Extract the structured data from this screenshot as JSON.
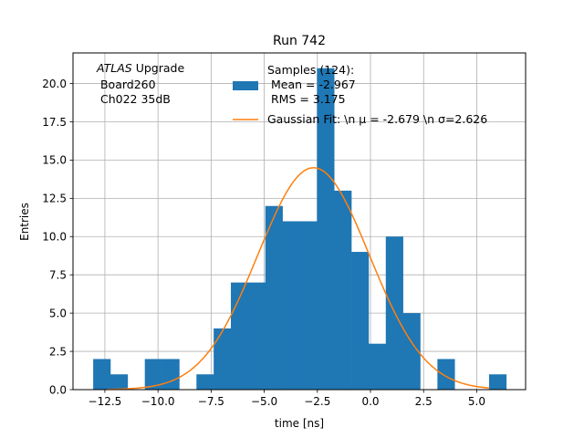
{
  "chart_data": {
    "type": "bar",
    "title": "Run 742",
    "xlabel": "time [ns]",
    "ylabel": "Entries",
    "xlim": [
      -14.0,
      7.3
    ],
    "ylim": [
      0,
      22
    ],
    "grid": true,
    "xticks": [
      -12.5,
      -10.0,
      -7.5,
      -5.0,
      -2.5,
      0.0,
      2.5,
      5.0
    ],
    "xtick_labels": [
      "−12.5",
      "−10.0",
      "−7.5",
      "−5.0",
      "−2.5",
      "0.0",
      "2.5",
      "5.0"
    ],
    "yticks": [
      0.0,
      2.5,
      5.0,
      7.5,
      10.0,
      12.5,
      15.0,
      17.5,
      20.0
    ],
    "ytick_labels": [
      "0.0",
      "2.5",
      "5.0",
      "7.5",
      "10.0",
      "12.5",
      "15.0",
      "17.5",
      "20.0"
    ],
    "histogram": {
      "bin_edges": [
        -13.05,
        -12.24,
        -11.43,
        -10.62,
        -9.81,
        -9.0,
        -8.19,
        -7.38,
        -6.57,
        -5.76,
        -4.95,
        -4.14,
        -3.33,
        -2.52,
        -1.71,
        -0.9,
        -0.09,
        0.72,
        1.53,
        2.34,
        3.15,
        3.96,
        4.77,
        5.58,
        6.39
      ],
      "counts": [
        2,
        1,
        0,
        2,
        2,
        0,
        1,
        4,
        7,
        7,
        12,
        11,
        11,
        21,
        13,
        9,
        3,
        10,
        5,
        0,
        2,
        0,
        0,
        1
      ],
      "color": "#1f77b4"
    },
    "gaussian_fit": {
      "mu": -2.679,
      "sigma": 2.626,
      "amplitude": 14.5,
      "x_range": [
        -12.4,
        5.6
      ],
      "color": "#ff7f0e"
    },
    "legend": {
      "placement": "top-center",
      "entries": [
        {
          "kind": "patch",
          "lines": [
            "Samples (124):",
            " Mean = -2.967",
            " RMS = 3.175"
          ]
        },
        {
          "kind": "line",
          "label": "Gaussian Fit: \\n μ = -2.679 \\n σ=2.626"
        }
      ]
    },
    "annotation": {
      "lines": [
        {
          "italic": "ATLAS",
          "text": " Upgrade"
        },
        {
          "text": " Board260"
        },
        {
          "text": " Ch022 35dB"
        }
      ]
    }
  }
}
